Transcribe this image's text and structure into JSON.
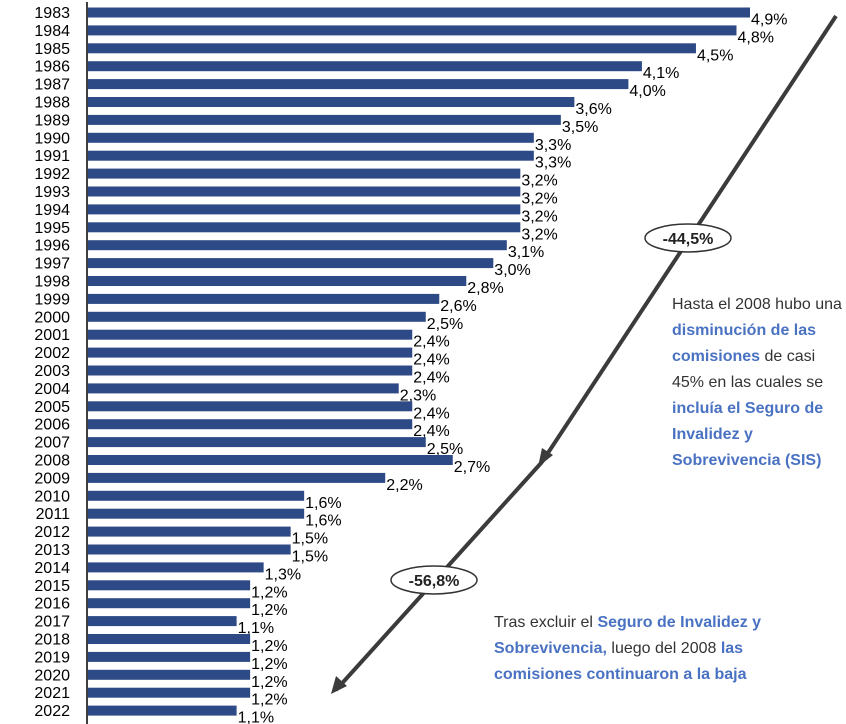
{
  "colors": {
    "bar": "#2e4a86",
    "arrow": "#3b3b3b",
    "highlight": "#4a72c2"
  },
  "chart_data": {
    "type": "bar",
    "orientation": "horizontal",
    "categories": [
      "1983",
      "1984",
      "1985",
      "1986",
      "1987",
      "1988",
      "1989",
      "1990",
      "1991",
      "1992",
      "1993",
      "1994",
      "1995",
      "1996",
      "1997",
      "1998",
      "1999",
      "2000",
      "2001",
      "2002",
      "2003",
      "2004",
      "2005",
      "2006",
      "2007",
      "2008",
      "2009",
      "2010",
      "2011",
      "2012",
      "2013",
      "2014",
      "2015",
      "2016",
      "2017",
      "2018",
      "2019",
      "2020",
      "2021",
      "2022"
    ],
    "values": [
      4.9,
      4.8,
      4.5,
      4.1,
      4.0,
      3.6,
      3.5,
      3.3,
      3.3,
      3.2,
      3.2,
      3.2,
      3.2,
      3.1,
      3.0,
      2.8,
      2.6,
      2.5,
      2.4,
      2.4,
      2.4,
      2.3,
      2.4,
      2.4,
      2.5,
      2.7,
      2.2,
      1.6,
      1.6,
      1.5,
      1.5,
      1.3,
      1.2,
      1.2,
      1.1,
      1.2,
      1.2,
      1.2,
      1.2,
      1.1
    ],
    "value_labels": [
      "4,9%",
      "4,8%",
      "4,5%",
      "4,1%",
      "4,0%",
      "3,6%",
      "3,5%",
      "3,3%",
      "3,3%",
      "3,2%",
      "3,2%",
      "3,2%",
      "3,2%",
      "3,1%",
      "3,0%",
      "2,8%",
      "2,6%",
      "2,5%",
      "2,4%",
      "2,4%",
      "2,4%",
      "2,3%",
      "2,4%",
      "2,4%",
      "2,5%",
      "2,7%",
      "2,2%",
      "1,6%",
      "1,6%",
      "1,5%",
      "1,5%",
      "1,3%",
      "1,2%",
      "1,2%",
      "1,1%",
      "1,2%",
      "1,2%",
      "1,2%",
      "1,2%",
      "1,1%"
    ],
    "xlim": [
      0,
      4.9
    ],
    "grid": false,
    "annotations": {
      "badge1": "-44,5%",
      "badge2": "-56,8%"
    }
  },
  "note1": {
    "p1": "Hasta el 2008 hubo una ",
    "h1": "disminución de las comisiones",
    "p2": " de casi 45% en las cuales se ",
    "h2": "incluía el Seguro de Invalidez y Sobrevivencia (SIS)"
  },
  "note2": {
    "p1": "Tras excluir el ",
    "h1": "Seguro de Invalidez y Sobrevivencia,",
    "p2": " luego del 2008 ",
    "h2": "las comisiones continuaron a la baja"
  }
}
